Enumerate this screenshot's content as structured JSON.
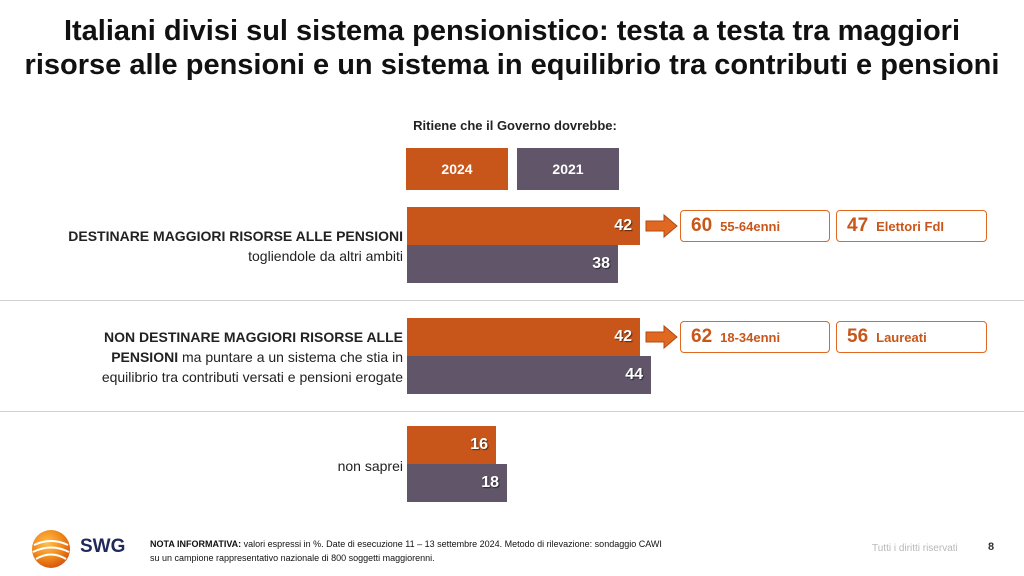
{
  "title_line1": "Italiani divisi sul sistema pensionistico: testa a testa tra maggiori",
  "title_line2": "risorse alle pensioni e un sistema in equilibrio tra contributi e pensioni",
  "colors": {
    "y2024": "#C8561A",
    "y2021": "#605569",
    "accent": "#E06820"
  },
  "chart_data": {
    "type": "bar",
    "orientation": "horizontal",
    "title": "Ritiene che il Governo dovrebbe:",
    "categories": [
      "DESTINARE MAGGIORI RISORSE ALLE PENSIONI togliendole da altri ambiti",
      "NON DESTINARE MAGGIORI RISORSE ALLE PENSIONI ma puntare a un sistema che stia in equilibrio tra contributi versati e pensioni erogate",
      "non saprei"
    ],
    "series": [
      {
        "name": "2024",
        "values": [
          42,
          42,
          16
        ]
      },
      {
        "name": "2021",
        "values": [
          38,
          44,
          18
        ]
      }
    ],
    "xlim": [
      0,
      100
    ],
    "grid": false,
    "legend": "top"
  },
  "labels": {
    "cat1_bold": "DESTINARE MAGGIORI RISORSE ALLE PENSIONI",
    "cat1_rest": "togliendole da altri ambiti",
    "cat2_bold1": "NON DESTINARE MAGGIORI RISORSE ALLE",
    "cat2_bold2": "PENSIONI",
    "cat2_rest1": " ma puntare a un sistema che stia in",
    "cat2_rest2": "equilibrio tra contributi versati e pensioni erogate",
    "cat3": "non saprei"
  },
  "callouts": [
    [
      {
        "value": "60",
        "label": "55-64enni"
      },
      {
        "value": "47",
        "label": "Elettori FdI"
      }
    ],
    [
      {
        "value": "62",
        "label": "18-34enni"
      },
      {
        "value": "56",
        "label": "Laureati"
      }
    ]
  ],
  "footer": {
    "logo": "SWG",
    "note_bold": "NOTA INFORMATIVA:",
    "note_line1": " valori espressi in %. Date di esecuzione 11 – 13 settembre 2024. Metodo di rilevazione: sondaggio CAWI",
    "note_line2": "su un campione rappresentativo nazionale di 800 soggetti maggiorenni.",
    "rights": "Tutti i diritti riservati",
    "page": "8"
  }
}
